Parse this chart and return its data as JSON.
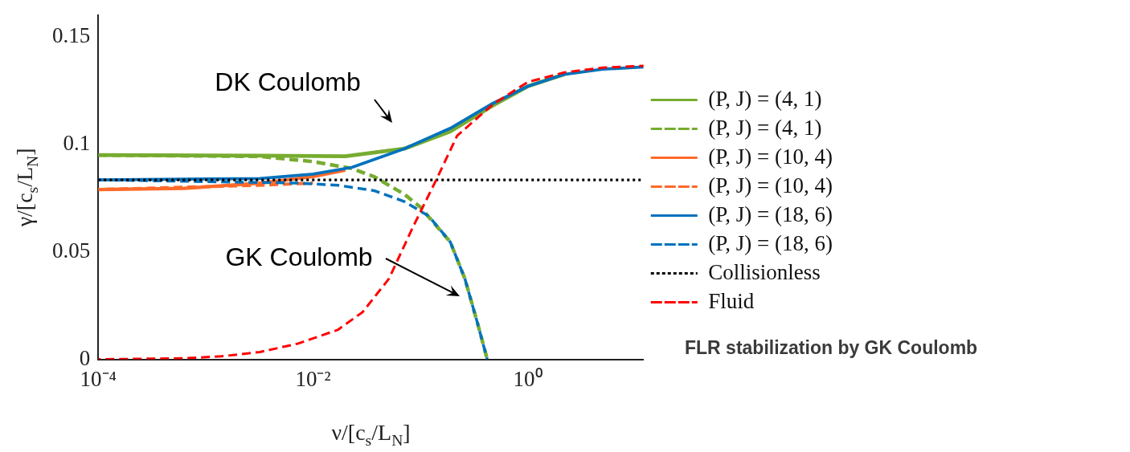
{
  "chart_data": {
    "type": "line",
    "xlabel": "ν/[c$_{s}$/L$_{N}$]",
    "ylabel": "γ/[c$_{s}$/L$_{N}$]",
    "log": "x",
    "xlim": [
      0.0001,
      12
    ],
    "ylim": [
      0,
      0.16
    ],
    "xticks": [
      {
        "value": 0.0001,
        "label": "10⁻⁴"
      },
      {
        "value": 0.01,
        "label": "10⁻²"
      },
      {
        "value": 1,
        "label": "10⁰"
      }
    ],
    "yticks": [
      0,
      0.05,
      0.1,
      0.15
    ],
    "legend": "right",
    "marker": "none",
    "series": [
      {
        "name": "(P, J) = (4, 1)",
        "color": "#77ac30",
        "line_style": "solid",
        "x": [
          0.0001,
          0.0032,
          0.02,
          0.071,
          0.19,
          0.47,
          1,
          2.2
        ],
        "values": [
          0.095,
          0.0948,
          0.0945,
          0.098,
          0.106,
          0.118,
          0.127,
          0.1326
        ]
      },
      {
        "name": "(P, J) = (4, 1)",
        "color": "#77ac30",
        "line_style": "dashed",
        "x": [
          0.0001,
          0.0032,
          0.01,
          0.023,
          0.037,
          0.071,
          0.1,
          0.19,
          0.26,
          0.34,
          0.42
        ],
        "values": [
          0.095,
          0.0944,
          0.092,
          0.0888,
          0.085,
          0.0768,
          0.0708,
          0.0546,
          0.0375,
          0.017,
          0
        ]
      },
      {
        "name": "(P, J) = (10, 4)",
        "color": "#ff6a2a",
        "line_style": "solid",
        "x": [
          0.0001,
          0.00063,
          0.0032,
          0.01,
          0.02
        ],
        "values": [
          0.079,
          0.0795,
          0.082,
          0.085,
          0.088
        ]
      },
      {
        "name": "(P, J) = (10, 4)",
        "color": "#ff6a2a",
        "line_style": "dashed",
        "x": [
          0.0001,
          0.0032,
          0.01
        ],
        "values": [
          0.079,
          0.081,
          0.082
        ]
      },
      {
        "name": "(P, J) = (18, 6)",
        "color": "#0072bd",
        "line_style": "solid",
        "x": [
          0.0001,
          0.0032,
          0.01,
          0.023,
          0.071,
          0.19,
          0.47,
          1,
          2.2,
          5,
          12
        ],
        "values": [
          0.0835,
          0.0841,
          0.0862,
          0.0893,
          0.098,
          0.1075,
          0.119,
          0.127,
          0.1326,
          0.135,
          0.136
        ]
      },
      {
        "name": "(P, J) = (18, 6)",
        "color": "#0072bd",
        "line_style": "dashed",
        "x": [
          0.0001,
          0.0072,
          0.017,
          0.037,
          0.071,
          0.12,
          0.19,
          0.26,
          0.34,
          0.42
        ],
        "values": [
          0.0835,
          0.082,
          0.081,
          0.0785,
          0.0734,
          0.0666,
          0.0546,
          0.0375,
          0.017,
          0
        ]
      },
      {
        "name": "Collisionless",
        "color": "#000000",
        "line_style": "dotted",
        "x": [
          0.0001,
          12
        ],
        "values": [
          0.0835,
          0.0835
        ]
      },
      {
        "name": "Fluid",
        "color": "#ff0000",
        "line_style": "dashed",
        "x": [
          0.0001,
          0.00063,
          0.0014,
          0.0032,
          0.0072,
          0.017,
          0.029,
          0.051,
          0.085,
          0.14,
          0.22,
          0.47,
          1,
          2.2,
          5,
          12
        ],
        "values": [
          0,
          0.0005,
          0.0014,
          0.0034,
          0.0073,
          0.0137,
          0.022,
          0.0375,
          0.0614,
          0.0833,
          0.104,
          0.1185,
          0.129,
          0.1335,
          0.1357,
          0.1365
        ]
      }
    ],
    "annotations": [
      "DK Coulomb",
      "GK Coulomb",
      "FLR stabilization by GK Coulomb"
    ]
  }
}
